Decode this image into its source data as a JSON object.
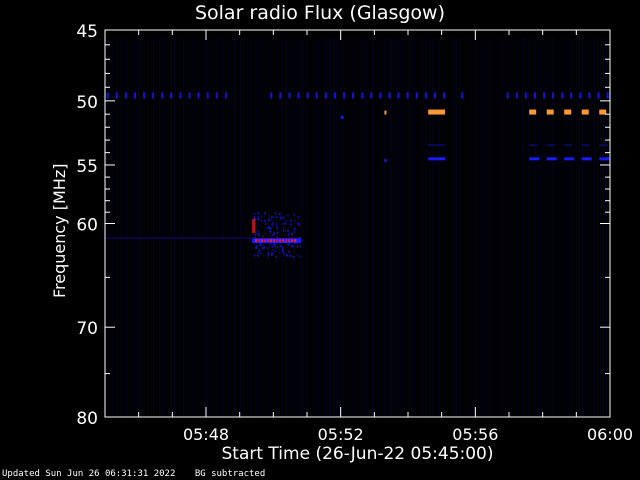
{
  "chart_data": {
    "type": "heatmap",
    "title": "Solar radio Flux (Glasgow)",
    "xlabel": "Start Time (26-Jun-22 05:45:00)",
    "ylabel": "Frequency [MHz]",
    "x_ticks": [
      "05:48",
      "05:52",
      "05:56",
      "06:00"
    ],
    "x_tick_minutes": [
      3,
      7,
      11,
      15
    ],
    "xlim_minutes_after_0545": [
      0,
      15
    ],
    "y_ticks": [
      45,
      50,
      55,
      60,
      70,
      80
    ],
    "ylim": [
      45,
      80
    ],
    "y_scale": "log",
    "colormap": "black-blue-red-orange",
    "features": [
      {
        "name": "burst",
        "t_start_min": 4.4,
        "t_end_min": 5.8,
        "f_low": 59.0,
        "f_high": 63.0,
        "peak_f": 61.5
      },
      {
        "name": "interference",
        "t_start_min": 9.6,
        "t_end_min": 10.1,
        "f": 50.8,
        "level": "high"
      },
      {
        "name": "interference",
        "t_start_min": 12.6,
        "t_end_min": 14.9,
        "f": 50.8,
        "level": "high"
      }
    ]
  },
  "footer": {
    "updated": "Updated Sun Jun 26 06:31:31 2022",
    "note": "BG subtracted"
  },
  "colors": {
    "background": "#000000",
    "axis": "#ffffff",
    "low": "#0a0a5a",
    "mid": "#1a1aff",
    "high": "#ff2020",
    "peak": "#ff9933"
  }
}
